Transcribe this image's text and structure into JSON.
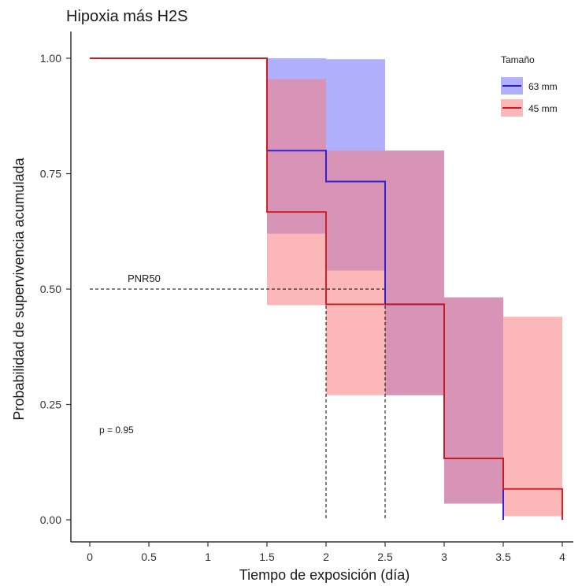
{
  "chart_data": {
    "type": "line",
    "subtype": "step survival curve with confidence bands",
    "title": "Hipoxia más H2S",
    "xlabel": "Tiempo de exposición (día)",
    "ylabel": "Probabilidad de supervivencia acumulada",
    "xlim": [
      0,
      4
    ],
    "ylim": [
      0,
      1
    ],
    "x_ticks": [
      "0",
      "0.5",
      "1",
      "1.5",
      "2",
      "2.5",
      "3",
      "3.5",
      "4"
    ],
    "x_tick_values": [
      0,
      0.5,
      1,
      1.5,
      2,
      2.5,
      3,
      3.5,
      4
    ],
    "y_ticks": [
      "0.00",
      "0.25",
      "0.50",
      "0.75",
      "1.00"
    ],
    "y_tick_values": [
      0,
      0.25,
      0.5,
      0.75,
      1.0
    ],
    "grid": false,
    "legend": {
      "title": "Tamaño",
      "position": "top-right",
      "entries": [
        "63 mm",
        "45 mm"
      ]
    },
    "series": [
      {
        "name": "63 mm",
        "color": "#2a1ad6",
        "band_color": "#6f6ffc",
        "times": [
          0,
          1.5,
          2,
          2.5,
          3,
          3.5
        ],
        "surv": [
          1.0,
          0.8,
          0.733,
          0.467,
          0.133,
          0.0
        ],
        "lower": [
          1.0,
          0.62,
          0.54,
          0.27,
          0.035,
          0.0
        ],
        "upper": [
          1.0,
          1.0,
          0.998,
          0.8,
          0.482,
          0.0
        ]
      },
      {
        "name": "45 mm",
        "color": "#d21a1a",
        "band_color": "#fa7e7e",
        "times": [
          0,
          1.5,
          2,
          2.5,
          3,
          3.5,
          4
        ],
        "surv": [
          1.0,
          0.667,
          0.467,
          0.467,
          0.133,
          0.067,
          0.0
        ],
        "lower": [
          1.0,
          0.465,
          0.27,
          0.27,
          0.035,
          0.008,
          0.0
        ],
        "upper": [
          1.0,
          0.955,
          0.8,
          0.8,
          0.482,
          0.44,
          0.0
        ]
      }
    ],
    "reference_lines": {
      "horizontal_y": 0.5,
      "vertical_x": [
        2,
        2.5
      ],
      "label": "PNR50"
    },
    "annotations": [
      "PNR50",
      "p = 0.95"
    ]
  }
}
